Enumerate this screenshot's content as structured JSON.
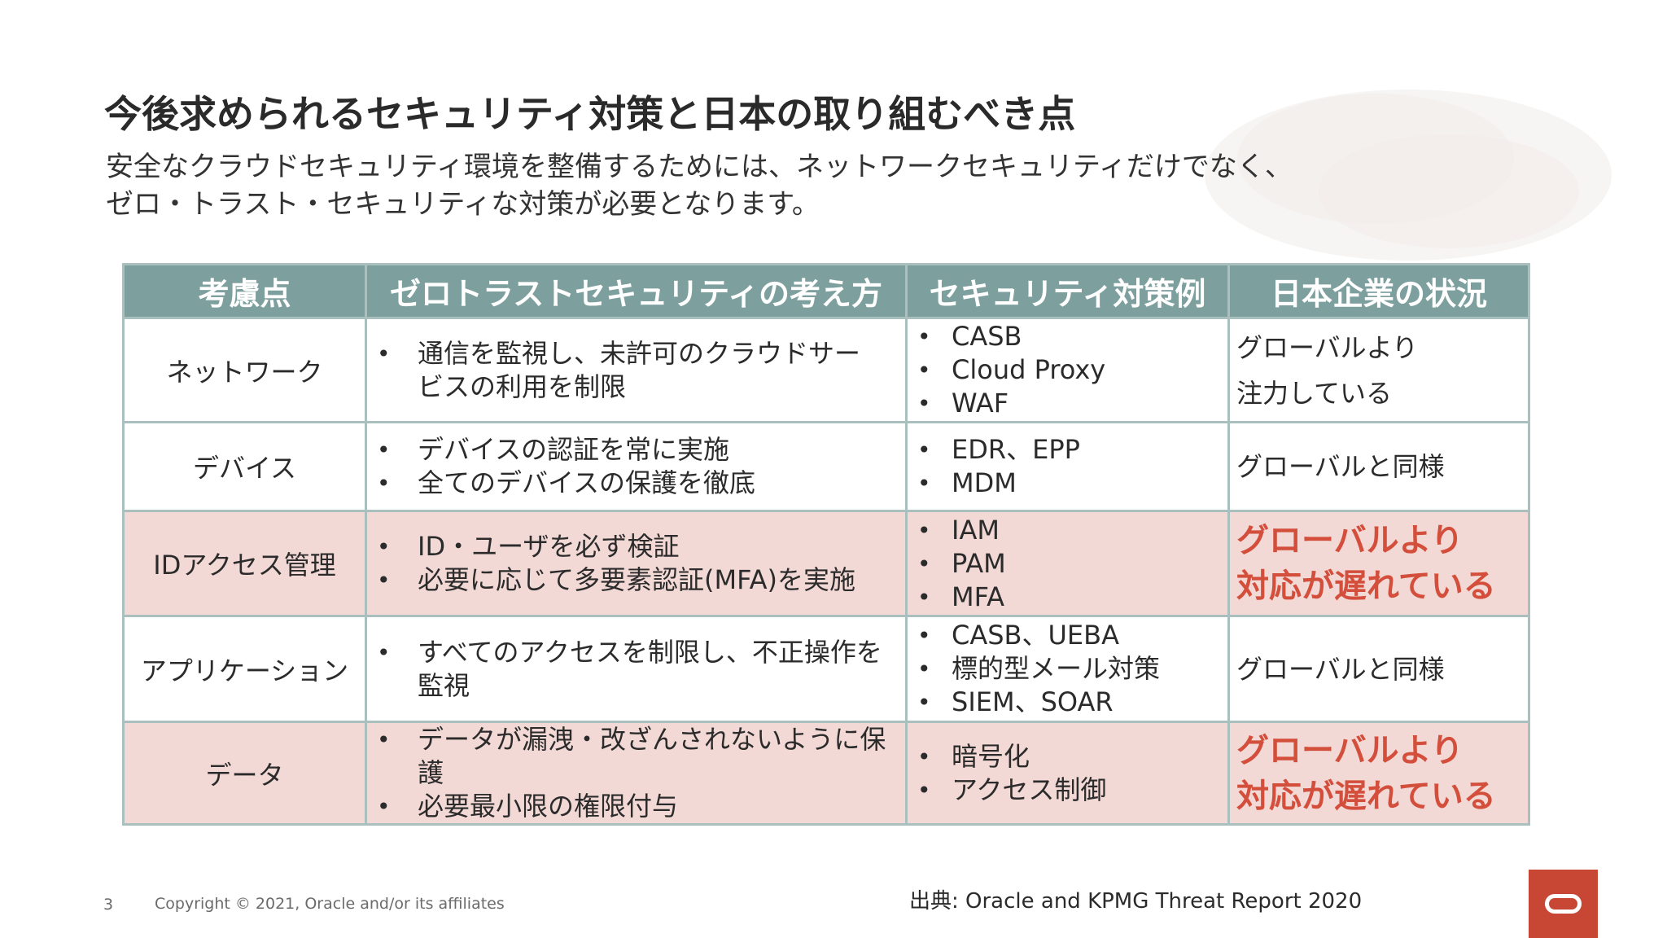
{
  "slide": {
    "title": "今後求められるセキュリティ対策と日本の取り組むべき点",
    "subtitle_line1": "安全なクラウドセキュリティ環境を整備するためには、ネットワークセキュリティだけでなく、",
    "subtitle_line2": "ゼロ・トラスト・セキュリティな対策が必要となります。"
  },
  "table": {
    "headers": [
      "考慮点",
      "ゼロトラストセキュリティの考え方",
      "セキュリティ対策例",
      "日本企業の状況"
    ],
    "rows": [
      {
        "topic": "ネットワーク",
        "approach": [
          "通信を監視し、未許可のクラウドサービスの利用を制限"
        ],
        "examples": [
          "CASB",
          "Cloud Proxy",
          "WAF"
        ],
        "status_line1": "グローバルより",
        "status_line2": "注力している"
      },
      {
        "topic": "デバイス",
        "approach": [
          "デバイスの認証を常に実施",
          "全てのデバイスの保護を徹底"
        ],
        "examples": [
          "EDR、EPP",
          "MDM"
        ],
        "status_line1": "グローバルと同様",
        "status_line2": ""
      },
      {
        "topic": "IDアクセス管理",
        "approach": [
          "ID・ユーザを必ず検証",
          "必要に応じて多要素認証(MFA)を実施"
        ],
        "examples": [
          "IAM",
          "PAM",
          "MFA"
        ],
        "status_line1": "グローバルより",
        "status_line2": "対応が遅れている"
      },
      {
        "topic": "アプリケーション",
        "approach": [
          "すべてのアクセスを制限し、不正操作を監視"
        ],
        "examples": [
          "CASB、UEBA",
          "標的型メール対策",
          "SIEM、SOAR"
        ],
        "status_line1": "グローバルと同様",
        "status_line2": ""
      },
      {
        "topic": "データ",
        "approach": [
          "データが漏洩・改ざんされないように保護",
          "必要最小限の権限付与"
        ],
        "examples": [
          "暗号化",
          "アクセス制御"
        ],
        "status_line1": "グローバルより",
        "status_line2": "対応が遅れている"
      }
    ]
  },
  "footer": {
    "page_number": "3",
    "copyright": "Copyright © 2021, Oracle and/or its affiliates",
    "source": "出典: Oracle and KPMG Threat Report 2020"
  },
  "colors": {
    "header_bg": "#7da09f",
    "highlight_row_bg": "#f3d9d6",
    "warning_text": "#d34f3c",
    "logo_red": "#c74634"
  },
  "icons": {
    "logo": "oracle-logo-icon"
  }
}
